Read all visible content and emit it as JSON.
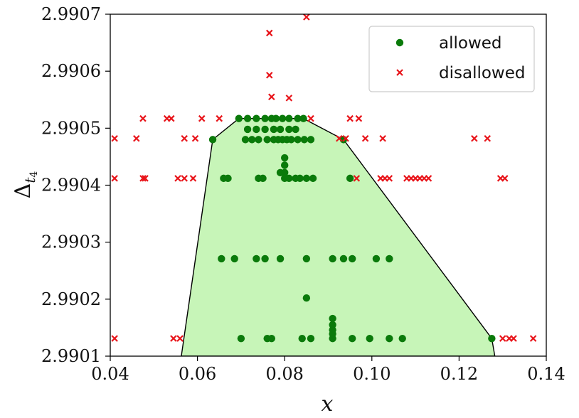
{
  "chart_data": {
    "type": "scatter",
    "xlabel": "x",
    "ylabel": {
      "base": "Δ",
      "sub1": "t",
      "sub2": "4"
    },
    "xlim": [
      0.04,
      0.14
    ],
    "ylim": [
      2.9901,
      2.9907
    ],
    "x_ticks": [
      0.04,
      0.06,
      0.08,
      0.1,
      0.12,
      0.14
    ],
    "x_tick_labels": [
      "0.04",
      "0.06",
      "0.08",
      "0.10",
      "0.12",
      "0.14"
    ],
    "y_ticks": [
      2.9901,
      2.9902,
      2.9903,
      2.9904,
      2.9905,
      2.9906,
      2.9907
    ],
    "y_tick_labels": [
      "2.9901",
      "2.9902",
      "2.9903",
      "2.9904",
      "2.9905",
      "2.9906",
      "2.9907"
    ],
    "grid": false,
    "legend_position": "top-right",
    "region": {
      "fill": "#c7f5b8",
      "stroke": "#000000",
      "vertices": [
        [
          0.0563,
          2.9901
        ],
        [
          0.0635,
          2.99048
        ],
        [
          0.0695,
          2.990517
        ],
        [
          0.0843,
          2.990517
        ],
        [
          0.0935,
          2.99048
        ],
        [
          0.1275,
          2.990131
        ],
        [
          0.1282,
          2.9901
        ]
      ]
    },
    "series": [
      {
        "name": "allowed",
        "marker": "circle",
        "color": "#0a7a0a",
        "points": [
          [
            0.0635,
            2.99048
          ],
          [
            0.0695,
            2.990517
          ],
          [
            0.0715,
            2.990517
          ],
          [
            0.0735,
            2.990517
          ],
          [
            0.0755,
            2.990517
          ],
          [
            0.077,
            2.990517
          ],
          [
            0.078,
            2.990517
          ],
          [
            0.0795,
            2.990517
          ],
          [
            0.081,
            2.990517
          ],
          [
            0.083,
            2.990517
          ],
          [
            0.0843,
            2.990517
          ],
          [
            0.0715,
            2.990498
          ],
          [
            0.0735,
            2.990498
          ],
          [
            0.0755,
            2.990498
          ],
          [
            0.0775,
            2.990498
          ],
          [
            0.079,
            2.990498
          ],
          [
            0.081,
            2.990498
          ],
          [
            0.0825,
            2.990498
          ],
          [
            0.071,
            2.99048
          ],
          [
            0.0725,
            2.99048
          ],
          [
            0.074,
            2.99048
          ],
          [
            0.076,
            2.99048
          ],
          [
            0.0775,
            2.99048
          ],
          [
            0.0785,
            2.99048
          ],
          [
            0.0795,
            2.99048
          ],
          [
            0.0805,
            2.99048
          ],
          [
            0.0815,
            2.99048
          ],
          [
            0.083,
            2.99048
          ],
          [
            0.0845,
            2.99048
          ],
          [
            0.086,
            2.99048
          ],
          [
            0.0935,
            2.99048
          ],
          [
            0.08,
            2.990448
          ],
          [
            0.08,
            2.990435
          ],
          [
            0.079,
            2.990422
          ],
          [
            0.08,
            2.990422
          ],
          [
            0.066,
            2.990412
          ],
          [
            0.067,
            2.990412
          ],
          [
            0.074,
            2.990412
          ],
          [
            0.075,
            2.990412
          ],
          [
            0.08,
            2.990412
          ],
          [
            0.081,
            2.990412
          ],
          [
            0.0825,
            2.990412
          ],
          [
            0.0835,
            2.990412
          ],
          [
            0.085,
            2.990412
          ],
          [
            0.0865,
            2.990412
          ],
          [
            0.095,
            2.990412
          ],
          [
            0.0655,
            2.990271
          ],
          [
            0.0685,
            2.990271
          ],
          [
            0.0735,
            2.990271
          ],
          [
            0.0755,
            2.990271
          ],
          [
            0.079,
            2.990271
          ],
          [
            0.085,
            2.990271
          ],
          [
            0.091,
            2.990271
          ],
          [
            0.0935,
            2.990271
          ],
          [
            0.0955,
            2.990271
          ],
          [
            0.101,
            2.990271
          ],
          [
            0.104,
            2.990271
          ],
          [
            0.085,
            2.990202
          ],
          [
            0.091,
            2.990166
          ],
          [
            0.091,
            2.990155
          ],
          [
            0.091,
            2.990146
          ],
          [
            0.091,
            2.990139
          ],
          [
            0.07,
            2.990131
          ],
          [
            0.076,
            2.990131
          ],
          [
            0.077,
            2.990131
          ],
          [
            0.084,
            2.990131
          ],
          [
            0.086,
            2.990131
          ],
          [
            0.091,
            2.990131
          ],
          [
            0.0955,
            2.990131
          ],
          [
            0.0995,
            2.990131
          ],
          [
            0.104,
            2.990131
          ],
          [
            0.107,
            2.990131
          ],
          [
            0.1275,
            2.990131
          ]
        ]
      },
      {
        "name": "disallowed",
        "marker": "x",
        "color": "#e8141a",
        "points": [
          [
            0.085,
            2.990695
          ],
          [
            0.0765,
            2.990667
          ],
          [
            0.0765,
            2.990593
          ],
          [
            0.077,
            2.990555
          ],
          [
            0.081,
            2.990553
          ],
          [
            0.0475,
            2.990517
          ],
          [
            0.053,
            2.990517
          ],
          [
            0.054,
            2.990517
          ],
          [
            0.061,
            2.990517
          ],
          [
            0.065,
            2.990517
          ],
          [
            0.086,
            2.990517
          ],
          [
            0.095,
            2.990517
          ],
          [
            0.097,
            2.990517
          ],
          [
            0.041,
            2.990482
          ],
          [
            0.046,
            2.990482
          ],
          [
            0.057,
            2.990482
          ],
          [
            0.0595,
            2.990482
          ],
          [
            0.0925,
            2.990482
          ],
          [
            0.094,
            2.990482
          ],
          [
            0.0985,
            2.990482
          ],
          [
            0.1025,
            2.990482
          ],
          [
            0.1235,
            2.990482
          ],
          [
            0.1265,
            2.990482
          ],
          [
            0.041,
            2.990412
          ],
          [
            0.0475,
            2.990412
          ],
          [
            0.048,
            2.990412
          ],
          [
            0.0555,
            2.990412
          ],
          [
            0.057,
            2.990412
          ],
          [
            0.059,
            2.990412
          ],
          [
            0.0965,
            2.990412
          ],
          [
            0.102,
            2.990412
          ],
          [
            0.103,
            2.990412
          ],
          [
            0.104,
            2.990412
          ],
          [
            0.108,
            2.990412
          ],
          [
            0.109,
            2.990412
          ],
          [
            0.11,
            2.990412
          ],
          [
            0.111,
            2.990412
          ],
          [
            0.112,
            2.990412
          ],
          [
            0.113,
            2.990412
          ],
          [
            0.1295,
            2.990412
          ],
          [
            0.1305,
            2.990412
          ],
          [
            0.041,
            2.990131
          ],
          [
            0.0545,
            2.990131
          ],
          [
            0.056,
            2.990131
          ],
          [
            0.13,
            2.990131
          ],
          [
            0.1315,
            2.990131
          ],
          [
            0.1325,
            2.990131
          ],
          [
            0.137,
            2.990131
          ]
        ]
      }
    ]
  }
}
